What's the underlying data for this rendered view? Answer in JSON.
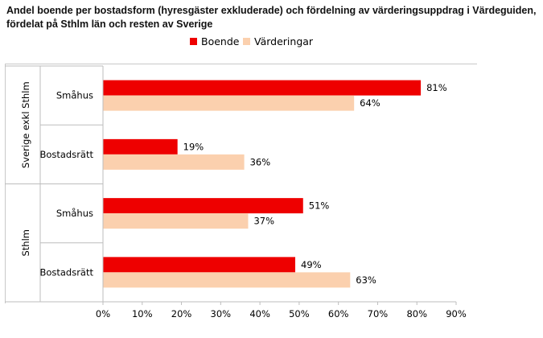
{
  "title": {
    "line1": "Andel boende per bostadsform (hyresgäster exkluderade) och fördelning av värderingsuppdrag i Värdeguiden,",
    "line2": "fördelat på Sthlm län och resten av Sverige"
  },
  "legend": [
    {
      "label": "Boende",
      "color": "#ee0000"
    },
    {
      "label": "Värderingar",
      "color": "#fbd0ae"
    }
  ],
  "chart_data": {
    "type": "bar",
    "orientation": "horizontal",
    "title": "Andel boende per bostadsform (hyresgäster exkluderade) och fördelning av värderingsuppdrag i Värdeguiden, fördelat på Sthlm län och resten av Sverige",
    "groups": [
      {
        "label": "Sverige exkl Sthlm",
        "categories": [
          "Småhus",
          "Bostadsrätt"
        ]
      },
      {
        "label": "Sthlm",
        "categories": [
          "Småhus",
          "Bostadsrätt"
        ]
      }
    ],
    "categories": [
      "Småhus",
      "Bostadsrätt",
      "Småhus",
      "Bostadsrätt"
    ],
    "series": [
      {
        "name": "Boende",
        "color": "#ee0000",
        "values": [
          81,
          19,
          51,
          49
        ],
        "labels": [
          "81%",
          "19%",
          "51%",
          "49%"
        ]
      },
      {
        "name": "Värderingar",
        "color": "#fbd0ae",
        "values": [
          64,
          36,
          37,
          63
        ],
        "labels": [
          "64%",
          "36%",
          "37%",
          "63%"
        ]
      }
    ],
    "xlim": [
      0,
      90
    ],
    "xticks": [
      0,
      10,
      20,
      30,
      40,
      50,
      60,
      70,
      80,
      90
    ],
    "xtick_labels": [
      "0%",
      "10%",
      "20%",
      "30%",
      "40%",
      "50%",
      "60%",
      "70%",
      "80%",
      "90%"
    ],
    "grid": false,
    "legend_position": "top"
  }
}
